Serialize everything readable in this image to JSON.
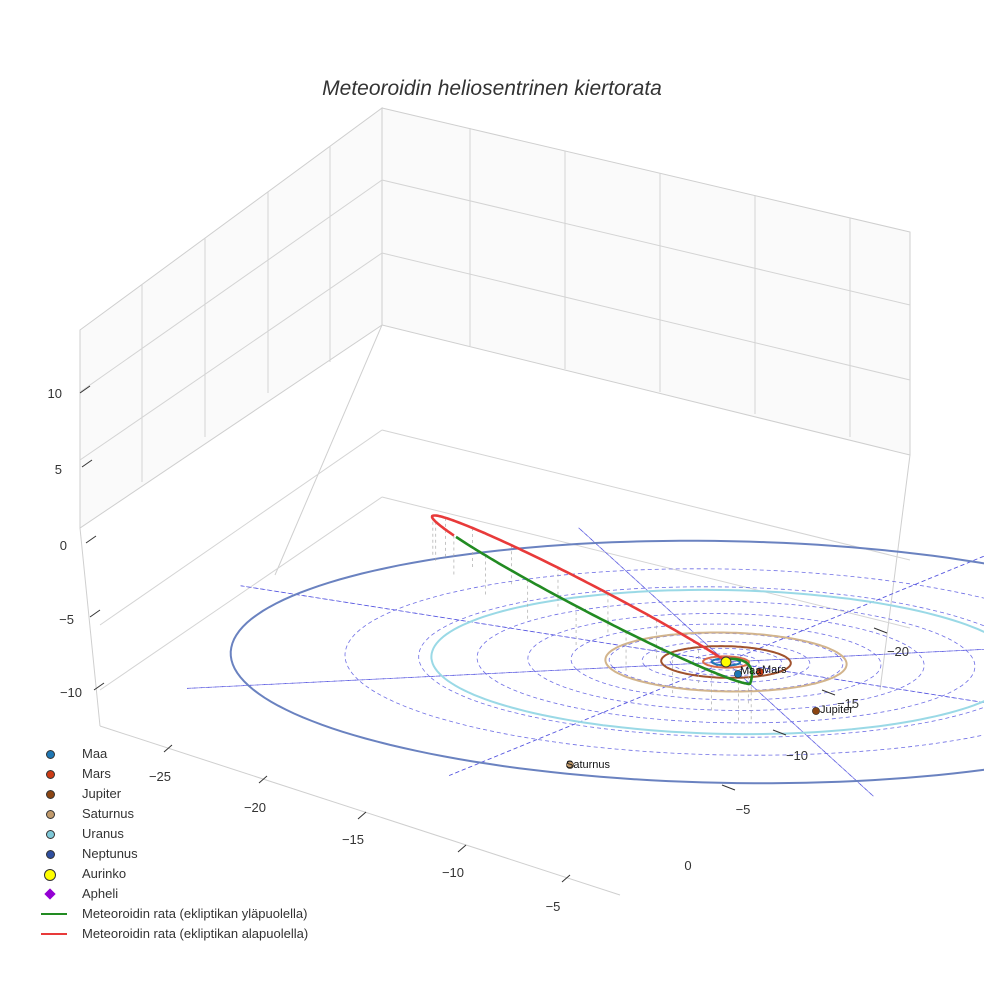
{
  "chart_data": {
    "type": "line",
    "title": "Meteoroidin heliosentrinen kiertorata",
    "xlabel": "",
    "ylabel": "",
    "zlabel": "",
    "x_ticks": [
      "−25",
      "−20",
      "−15",
      "−10",
      "−5",
      "0"
    ],
    "y_ticks": [
      "−20",
      "−15",
      "−10",
      "−5"
    ],
    "z_ticks": [
      "10",
      "5",
      "0",
      "−5",
      "−10"
    ],
    "axis_ranges": {
      "x": [
        -28,
        2
      ],
      "y": [
        -22,
        2
      ],
      "z": [
        -12,
        12
      ]
    },
    "grid": true,
    "legend_position": "bottom-left",
    "planets": [
      {
        "name": "Maa",
        "label": "Maa",
        "orbit_au": 1.0,
        "color": "#1f77b4",
        "orbit_color": "#1f77b4"
      },
      {
        "name": "Mars",
        "label": "Mars",
        "orbit_au": 1.52,
        "color": "#cc3b14",
        "orbit_color": "#d9694a"
      },
      {
        "name": "Jupiter",
        "label": "Jupiter",
        "orbit_au": 5.2,
        "color": "#8b4513",
        "orbit_color": "#a0522d"
      },
      {
        "name": "Saturnus",
        "label": "Saturnus",
        "orbit_au": 9.5,
        "color": "#c19a6b",
        "orbit_color": "#d2b48c"
      },
      {
        "name": "Uranus",
        "label": "",
        "orbit_au": 19.2,
        "color": "#7ec8d8",
        "orbit_color": "#9ad9e6"
      },
      {
        "name": "Neptunus",
        "label": "",
        "orbit_au": 30.1,
        "color": "#2f4f9f",
        "orbit_color": "#6a82c0"
      }
    ],
    "sun": {
      "name": "Aurinko",
      "color": "#ffff00"
    },
    "aphelion": {
      "name": "Apheli",
      "color": "#9400d3"
    },
    "meteoroid": {
      "above_name": "Meteoroidin rata (ekliptikan yläpuolella)",
      "below_name": "Meteoroidin rata (ekliptikan alapuolella)",
      "above_color": "#228b22",
      "below_color": "#e83a3a"
    },
    "annotations": [
      "Maa",
      "Mars",
      "Jupiter",
      "Saturnus"
    ]
  },
  "legend": [
    {
      "label": "Maa",
      "kind": "dot",
      "color": "#1f77b4"
    },
    {
      "label": "Mars",
      "kind": "dot",
      "color": "#cc3b14"
    },
    {
      "label": "Jupiter",
      "kind": "dot",
      "color": "#8b4513"
    },
    {
      "label": "Saturnus",
      "kind": "dot",
      "color": "#c19a6b"
    },
    {
      "label": "Uranus",
      "kind": "dot",
      "color": "#7ec8d8"
    },
    {
      "label": "Neptunus",
      "kind": "dot",
      "color": "#2f4f9f"
    },
    {
      "label": "Aurinko",
      "kind": "sun",
      "color": "#ffff00"
    },
    {
      "label": "Apheli",
      "kind": "diamond",
      "color": "#9400d3"
    },
    {
      "label": "Meteoroidin rata (ekliptikan yläpuolella)",
      "kind": "line",
      "color": "#228b22"
    },
    {
      "label": "Meteoroidin rata (ekliptikan alapuolella)",
      "kind": "line",
      "color": "#e83a3a"
    }
  ]
}
